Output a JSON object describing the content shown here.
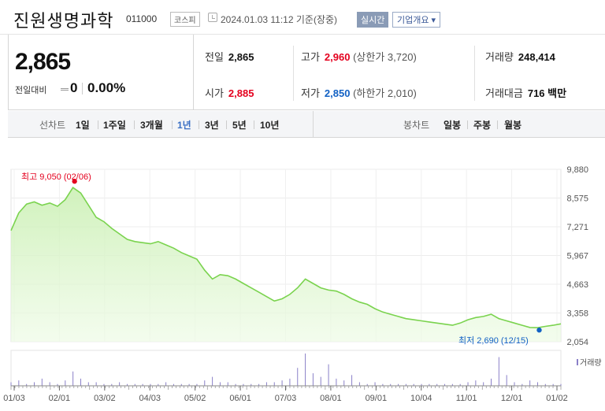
{
  "header": {
    "name": "진원생명과학",
    "code": "011000",
    "market": "코스피",
    "timestamp": "2024.01.03 11:12  기준(장중)",
    "realtime_button": "실시간",
    "overview_button": "기업개요 ▾"
  },
  "price": {
    "current": "2,865",
    "diff_label": "전일대비",
    "diff_value": "0",
    "diff_pct": "0.00%"
  },
  "stats": {
    "prev_label": "전일",
    "prev_value": "2,865",
    "high_label": "고가",
    "high_value": "2,960",
    "upper_limit": "(상한가 3,720)",
    "volume_label": "거래량",
    "volume_value": "248,414",
    "open_label": "시가",
    "open_value": "2,885",
    "low_label": "저가",
    "low_value": "2,850",
    "lower_limit": "(하한가 2,010)",
    "amount_label": "거래대금",
    "amount_value": "716 백만"
  },
  "period_bar": {
    "line_label": "선차트",
    "line_items": [
      "1일",
      "1주일",
      "3개월",
      "1년",
      "3년",
      "5년",
      "10년"
    ],
    "selected": "1년",
    "candle_label": "봉차트",
    "candle_items": [
      "일봉",
      "주봉",
      "월봉"
    ]
  },
  "chart_data": {
    "type": "area",
    "x_labels": [
      "01/03",
      "02/01",
      "03/02",
      "04/03",
      "05/02",
      "06/01",
      "07/03",
      "08/01",
      "09/01",
      "10/04",
      "11/01",
      "12/01",
      "01/02"
    ],
    "y_ticks": [
      "9,880",
      "8,575",
      "7,271",
      "5,967",
      "4,663",
      "3,358",
      "2,054"
    ],
    "ylim": [
      2054,
      9880
    ],
    "max_annotation": "최고 9,050 (02/06)",
    "min_annotation": "최저 2,690 (12/15)",
    "volume_label": "거래량",
    "series": [
      {
        "values": [
          7100,
          7900,
          8300,
          8400,
          8250,
          8350,
          8200,
          8500,
          9050,
          8800,
          8250,
          7700,
          7500,
          7200,
          6950,
          6700,
          6600,
          6550,
          6500,
          6600,
          6450,
          6300,
          6100,
          5950,
          5800,
          5300,
          4900,
          5100,
          5050,
          4900,
          4700,
          4500,
          4300,
          4100,
          3900,
          4000,
          4200,
          4500,
          4900,
          4700,
          4500,
          4400,
          4350,
          4200,
          4000,
          3850,
          3750,
          3550,
          3400,
          3300,
          3200,
          3100,
          3050,
          3000,
          2950,
          2900,
          2850,
          2800,
          2900,
          3050,
          3150,
          3200,
          3300,
          3100,
          3000,
          2900,
          2800,
          2700,
          2690,
          2750,
          2800,
          2865
        ]
      }
    ],
    "volume": [
      2,
      3,
      1,
      2,
      4,
      2,
      1,
      3,
      8,
      4,
      2,
      2,
      1,
      1,
      2,
      1,
      1,
      1,
      1,
      1,
      2,
      1,
      1,
      1,
      1,
      3,
      5,
      2,
      2,
      1,
      1,
      1,
      1,
      2,
      2,
      3,
      4,
      10,
      18,
      7,
      5,
      12,
      4,
      3,
      6,
      2,
      1,
      2,
      1,
      1,
      1,
      1,
      1,
      1,
      1,
      1,
      1,
      1,
      1,
      2,
      3,
      2,
      4,
      16,
      6,
      2,
      1,
      3,
      2,
      1,
      1,
      1
    ]
  }
}
